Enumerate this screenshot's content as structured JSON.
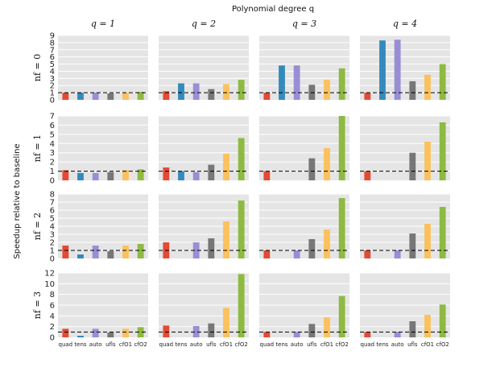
{
  "figure": {
    "suptitle": "Polynomial degree q",
    "ylabel": "Speedup relative to baseline",
    "col_labels": [
      "q = 1",
      "q = 2",
      "q = 3",
      "q = 4"
    ],
    "row_labels": [
      "nf = 0",
      "nf = 1",
      "nf = 2",
      "nf = 3"
    ]
  },
  "chart_data": {
    "type": "bar",
    "title": "Polynomial degree q",
    "ylabel": "Speedup relative to baseline",
    "categories": [
      "quad",
      "tens",
      "auto",
      "ufls",
      "cfO1",
      "cfO2"
    ],
    "colors": [
      "#e24a33",
      "#348abd",
      "#988ed5",
      "#777777",
      "#fbc15e",
      "#8eba42"
    ],
    "baseline": 1,
    "rows": [
      {
        "label": "nf = 0",
        "ylim": [
          0,
          9
        ],
        "yticks": [
          0,
          1,
          2,
          3,
          4,
          5,
          6,
          7,
          8,
          9
        ],
        "panels": [
          {
            "q": "q = 1",
            "values": [
              1.0,
              1.0,
              1.0,
              0.9,
              1.0,
              1.1
            ]
          },
          {
            "q": "q = 2",
            "values": [
              1.2,
              2.3,
              2.3,
              1.5,
              2.2,
              2.8
            ]
          },
          {
            "q": "q = 3",
            "values": [
              1.0,
              4.8,
              4.8,
              2.1,
              2.8,
              4.4
            ]
          },
          {
            "q": "q = 4",
            "values": [
              1.0,
              8.3,
              8.4,
              2.6,
              3.5,
              5.0
            ]
          }
        ]
      },
      {
        "label": "nf = 1",
        "ylim": [
          0,
          7
        ],
        "yticks": [
          0,
          1,
          2,
          3,
          4,
          5,
          6,
          7
        ],
        "panels": [
          {
            "q": "q = 1",
            "values": [
              1.1,
              0.8,
              0.8,
              0.9,
              1.1,
              1.2
            ]
          },
          {
            "q": "q = 2",
            "values": [
              1.4,
              1.0,
              0.9,
              1.7,
              2.9,
              4.6
            ]
          },
          {
            "q": "q = 3",
            "values": [
              1.0,
              0.0,
              0.0,
              2.4,
              3.5,
              7.0
            ]
          },
          {
            "q": "q = 4",
            "values": [
              1.0,
              0.0,
              0.0,
              3.0,
              4.2,
              6.3
            ]
          }
        ]
      },
      {
        "label": "nf = 2",
        "ylim": [
          0,
          8
        ],
        "yticks": [
          0,
          1,
          2,
          3,
          4,
          5,
          6,
          7,
          8
        ],
        "panels": [
          {
            "q": "q = 1",
            "values": [
              1.6,
              0.5,
              1.6,
              0.9,
              1.6,
              1.8
            ]
          },
          {
            "q": "q = 2",
            "values": [
              2.0,
              0.0,
              2.0,
              2.5,
              4.6,
              7.2
            ]
          },
          {
            "q": "q = 3",
            "values": [
              1.0,
              0.0,
              1.0,
              2.4,
              3.6,
              7.5
            ]
          },
          {
            "q": "q = 4",
            "values": [
              1.0,
              0.0,
              1.0,
              3.1,
              4.3,
              6.4
            ]
          }
        ]
      },
      {
        "label": "nf = 3",
        "ylim": [
          0,
          12
        ],
        "yticks": [
          0,
          2,
          4,
          6,
          8,
          10,
          12
        ],
        "panels": [
          {
            "q": "q = 1",
            "values": [
              1.6,
              0.3,
              1.6,
              0.9,
              1.6,
              1.9
            ]
          },
          {
            "q": "q = 2",
            "values": [
              2.2,
              0.0,
              2.1,
              2.6,
              5.5,
              11.8
            ]
          },
          {
            "q": "q = 3",
            "values": [
              1.0,
              0.0,
              1.0,
              2.5,
              3.7,
              7.7
            ]
          },
          {
            "q": "q = 4",
            "values": [
              1.0,
              0.0,
              1.0,
              3.0,
              4.2,
              6.1
            ]
          }
        ]
      }
    ]
  }
}
